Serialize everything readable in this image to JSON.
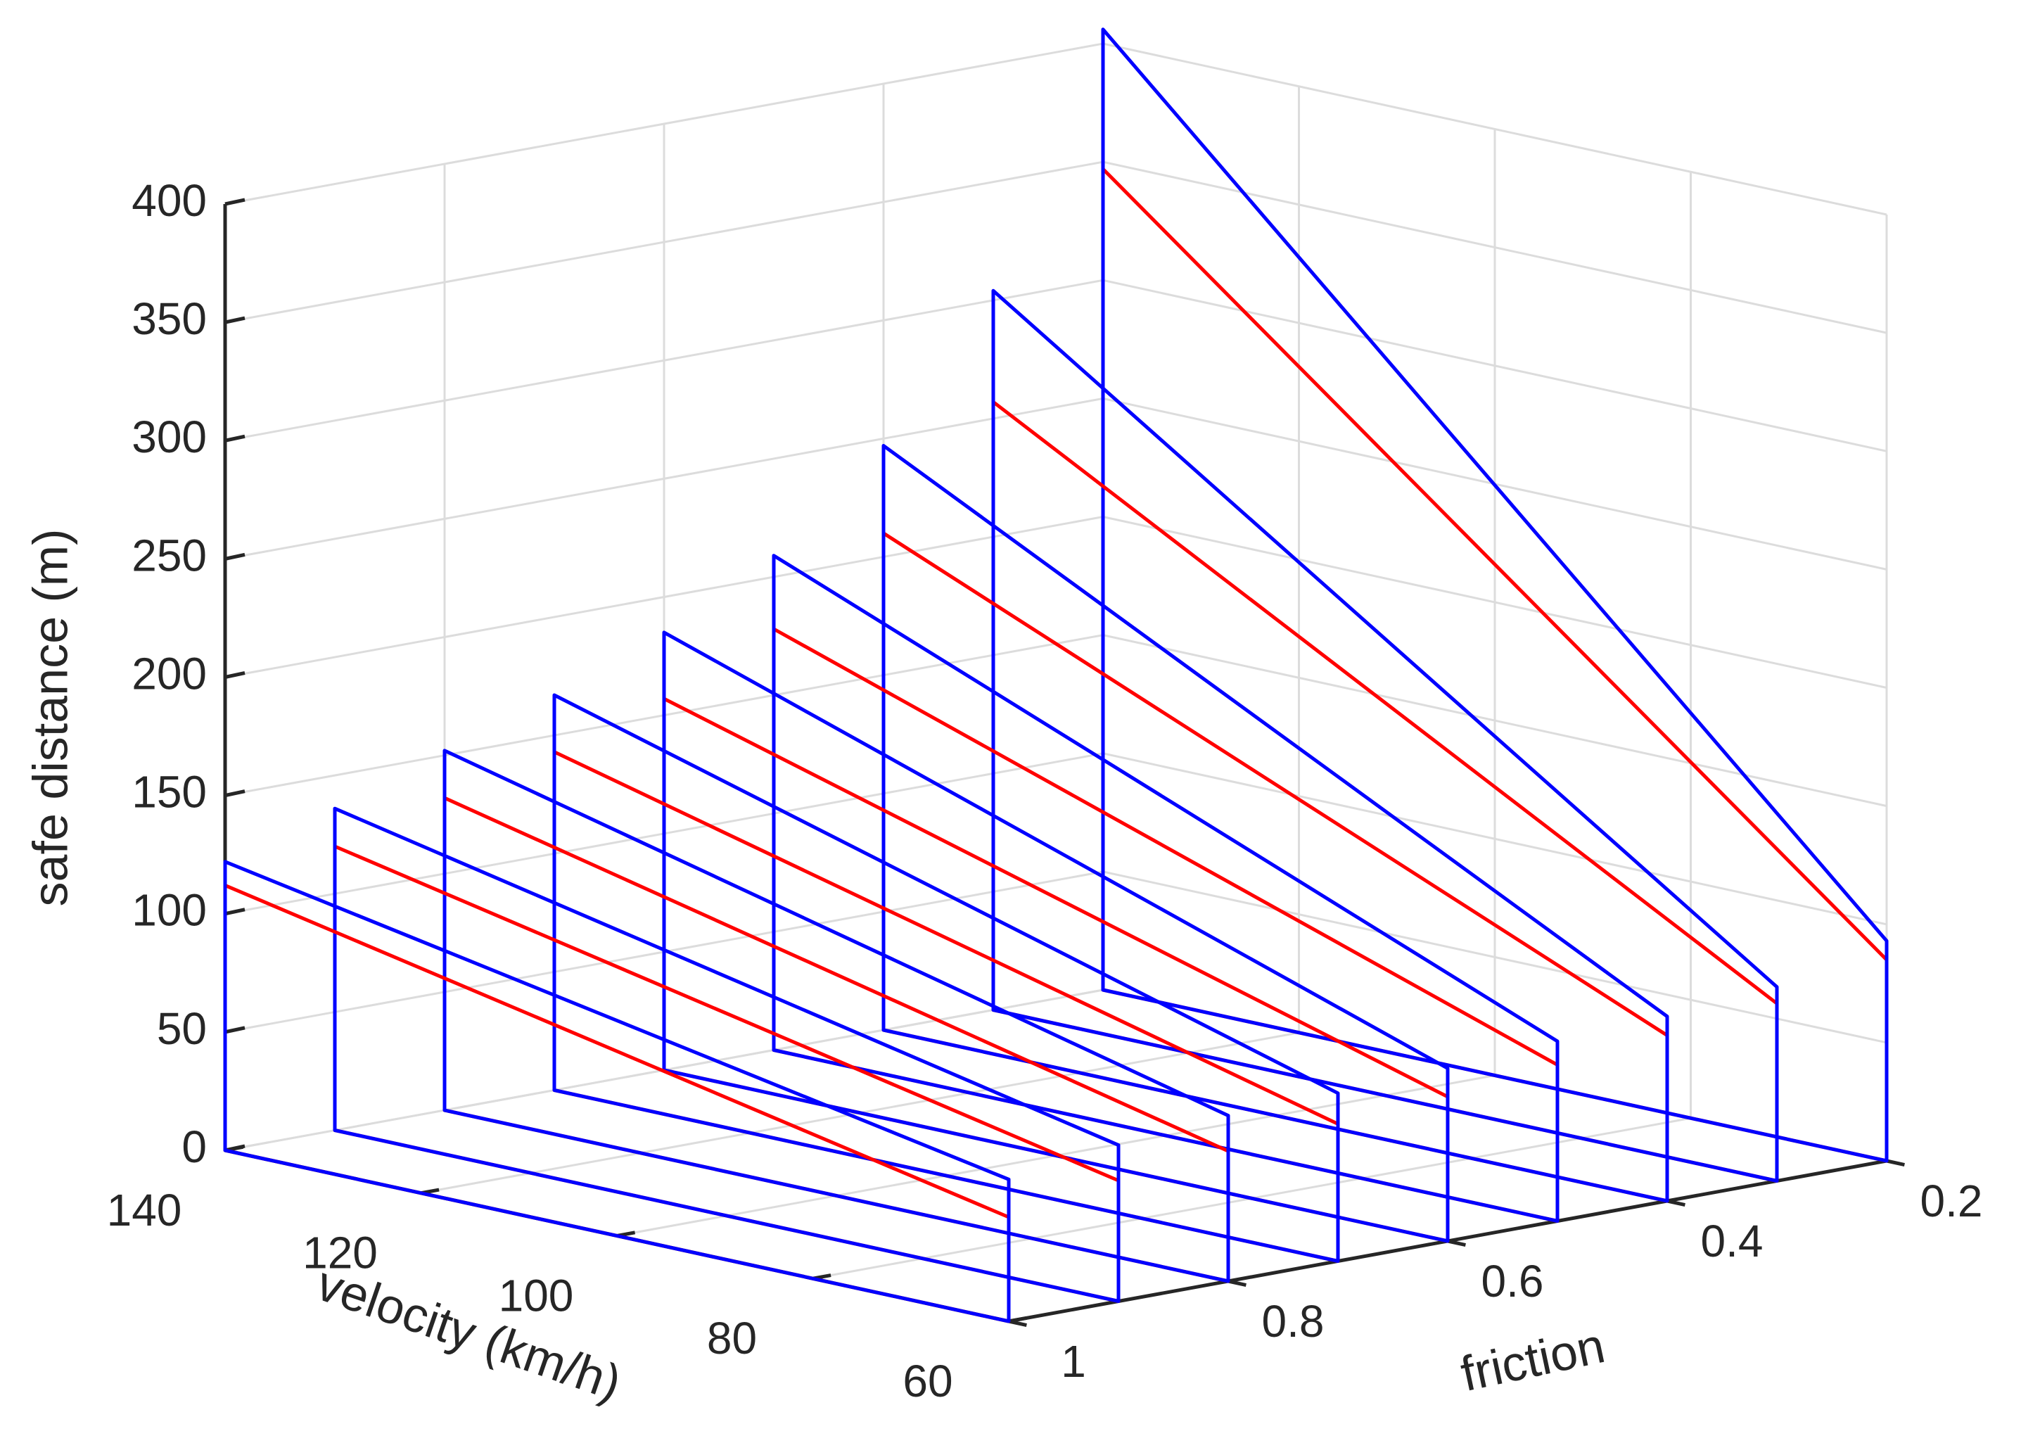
{
  "chart_data": {
    "type": "line",
    "subtype": "3d-ribbon",
    "title": "",
    "xlabel": "friction",
    "ylabel": "velocity (km/h)",
    "zlabel": "safe distance (m)",
    "x_axis": {
      "range": [
        0.2,
        1
      ],
      "ticks": [
        0.2,
        0.4,
        0.6,
        0.8,
        1
      ],
      "tick_labels": [
        "0.2",
        "0.4",
        "0.6",
        "0.8",
        "1"
      ]
    },
    "y_axis": {
      "range": [
        60,
        140
      ],
      "ticks": [
        60,
        80,
        100,
        120,
        140
      ],
      "tick_labels": [
        "60",
        "80",
        "100",
        "120",
        "140"
      ]
    },
    "z_axis": {
      "range": [
        0,
        400
      ],
      "ticks": [
        0,
        50,
        100,
        150,
        200,
        250,
        300,
        350,
        400
      ],
      "tick_labels": [
        "0",
        "50",
        "100",
        "150",
        "200",
        "250",
        "300",
        "350",
        "400"
      ]
    },
    "grid": true,
    "colors": {
      "series_a": "#0000ff",
      "series_b": "#ff0000",
      "grid": "#dcdcdc",
      "axis": "#262626"
    },
    "ribbons": [
      {
        "friction": 0.2,
        "velocity": [
          140,
          60
        ],
        "series_a": [
          406,
          93
        ],
        "series_b": [
          347,
          85
        ]
      },
      {
        "friction": 0.3,
        "velocity": [
          140,
          60
        ],
        "series_a": [
          304,
          82
        ],
        "series_b": [
          257,
          75
        ]
      },
      {
        "friction": 0.4,
        "velocity": [
          140,
          60
        ],
        "series_a": [
          247,
          78
        ],
        "series_b": [
          210,
          70
        ]
      },
      {
        "friction": 0.5,
        "velocity": [
          140,
          60
        ],
        "series_a": [
          209,
          76
        ],
        "series_b": [
          178,
          66
        ]
      },
      {
        "friction": 0.6,
        "velocity": [
          140,
          60
        ],
        "series_a": [
          185,
          73
        ],
        "series_b": [
          157,
          61
        ]
      },
      {
        "friction": 0.7,
        "velocity": [
          140,
          60
        ],
        "series_a": [
          167,
          71
        ],
        "series_b": [
          143,
          58
        ]
      },
      {
        "friction": 0.8,
        "velocity": [
          140,
          60
        ],
        "series_a": [
          152,
          70
        ],
        "series_b": [
          132,
          55
        ]
      },
      {
        "friction": 0.9,
        "velocity": [
          140,
          60
        ],
        "series_a": [
          136,
          66
        ],
        "series_b": [
          120,
          51
        ]
      },
      {
        "friction": 1.0,
        "velocity": [
          140,
          60
        ],
        "series_a": [
          122,
          60
        ],
        "series_b": [
          112,
          44
        ]
      }
    ]
  }
}
